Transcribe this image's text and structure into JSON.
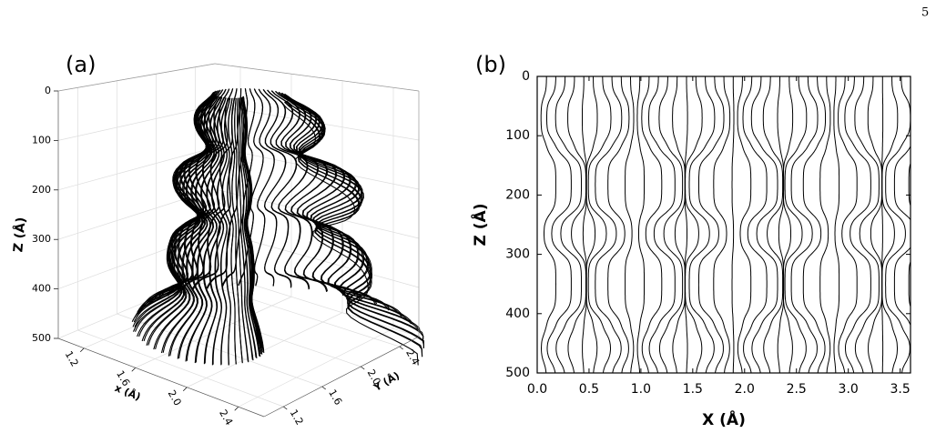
{
  "page_number": "5",
  "chart_data": [
    {
      "type": "streamline3d",
      "panel_label": "(a)",
      "xlabel": "x (Å)",
      "ylabel": "Y (Å)",
      "zlabel": "Z (Å)",
      "xlim": [
        1.0,
        2.6
      ],
      "xticks": [
        1.2,
        1.6,
        {
          "value": 2,
          "label": "2.0"
        },
        2.4
      ],
      "ylim": [
        1.0,
        2.6
      ],
      "yticks": [
        1.2,
        1.6,
        {
          "value": 2,
          "label": "2.0"
        },
        2.4
      ],
      "zlim": [
        0,
        500
      ],
      "zticks": [
        0,
        100,
        200,
        300,
        400,
        500
      ],
      "color": "#000000"
    },
    {
      "type": "contour",
      "panel_label": "(b)",
      "xlabel": "X (Å)",
      "ylabel": "Z (Å)",
      "xlim": [
        0,
        3.6
      ],
      "xticks": [
        {
          "value": 0,
          "label": "0.0"
        },
        0.5,
        {
          "value": 1,
          "label": "1.0"
        },
        1.5,
        {
          "value": 2,
          "label": "2.0"
        },
        2.5,
        {
          "value": 3,
          "label": "3.0"
        },
        3.5
      ],
      "ylim": [
        0,
        500
      ],
      "y_inverted": true,
      "yticks": [
        0,
        100,
        200,
        300,
        400,
        500
      ],
      "color": "#000000"
    }
  ]
}
